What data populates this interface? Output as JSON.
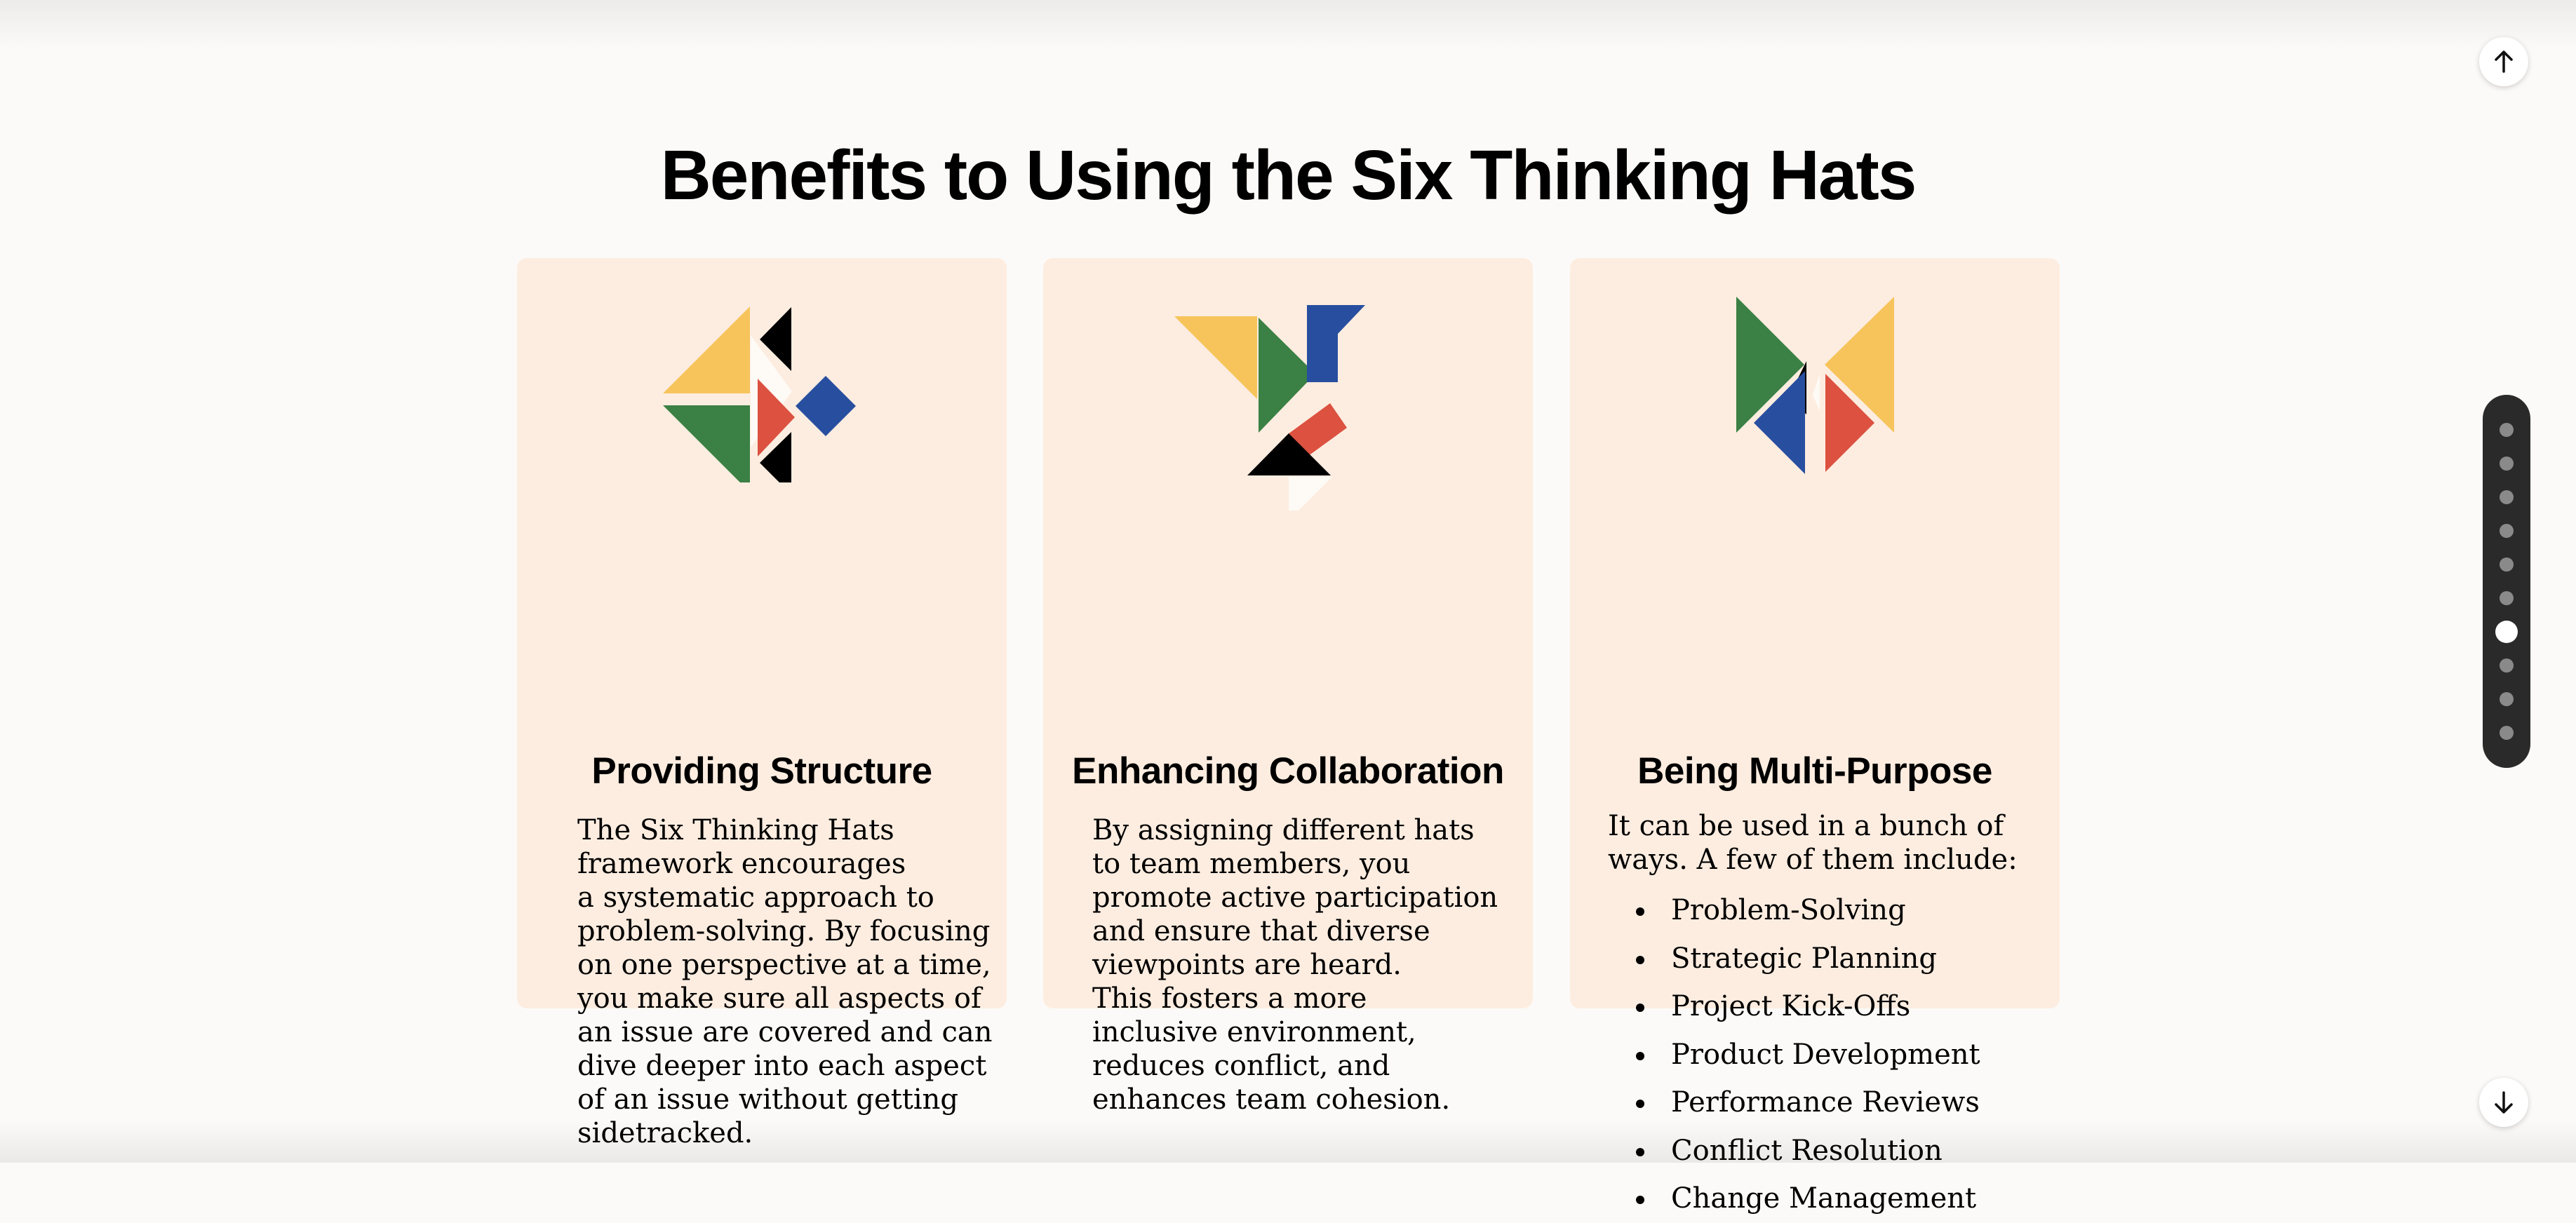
{
  "page": {
    "title": "Benefits to Using the Six Thinking Hats"
  },
  "cards": [
    {
      "title": "Providing Structure",
      "body": "The Six Thinking Hats\nframework encourages\na systematic approach to\nproblem-solving. By focusing\non one perspective at a time,\nyou make sure all aspects of\nan issue are covered and can\ndive deeper into each aspect\nof an issue without getting\nsidetracked."
    },
    {
      "title": "Enhancing Collaboration",
      "body": "By assigning different hats\nto team members, you\npromote active participation\nand ensure that diverse\nviewpoints are heard.\nThis fosters a more\ninclusive environment,\nreduces conflict, and\nenhances team cohesion."
    },
    {
      "title": "Being Multi-Purpose",
      "body": "It can be used in a bunch of\nways. A few of them include:",
      "list": [
        "Problem-Solving",
        "Strategic Planning",
        "Project Kick-Offs",
        "Product Development",
        "Performance Reviews",
        "Conflict Resolution",
        "Change Management"
      ]
    }
  ],
  "navigation": {
    "up_icon": "arrow-up-icon",
    "down_icon": "arrow-down-icon",
    "section_count": 10,
    "active_section": 7
  },
  "colors": {
    "background": "#fcfaf8",
    "card": "#fdede0",
    "yellow": "#f7c45c",
    "green": "#3b8044",
    "red": "#dc5140",
    "blue": "#284f9f",
    "black": "#000000",
    "rail": "#2a2a2a"
  }
}
